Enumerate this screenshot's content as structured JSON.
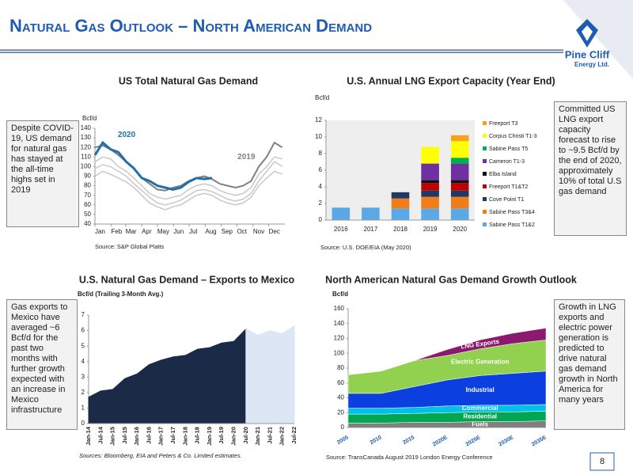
{
  "header": {
    "title": "Natural Gas Outlook – North American Demand",
    "logo": "Pine Cliff",
    "logo_sub": "Energy Ltd."
  },
  "page_number": "8",
  "notes": [
    "Despite COVID-19, US demand for natural gas has stayed at the all-time highs set in 2019",
    "Committed US LNG export capacity forecast to rise to ~9.5 Bcf/d by the end of 2020, approximately 10% of total U.S gas demand",
    "Gas exports to Mexico have averaged ~6 Bcf/d for the past two months with further growth expected with an increase in Mexico infrastructure",
    "Growth in LNG exports and electric power generation is predicted to drive natural gas demand growth in North America for many years"
  ],
  "chart_data": [
    {
      "type": "line",
      "title": "US Total Natural Gas Demand",
      "y_label": "Bcf/d",
      "source": "Source: S&P Global Platts",
      "x": [
        1,
        16,
        31,
        46,
        61,
        76,
        91,
        106,
        121,
        136,
        151,
        166,
        181,
        196,
        211,
        226,
        241,
        256,
        271,
        286,
        301,
        316,
        331,
        346,
        361
      ],
      "xlim": [
        1,
        366
      ],
      "xticks": [
        {
          "value": 1,
          "label": "Jan"
        },
        {
          "value": 32,
          "label": "Feb"
        },
        {
          "value": 60,
          "label": "Mar"
        },
        {
          "value": 91,
          "label": "Apr"
        },
        {
          "value": 121,
          "label": "May"
        },
        {
          "value": 152,
          "label": "Jun"
        },
        {
          "value": 182,
          "label": "Jul"
        },
        {
          "value": 213,
          "label": "Aug"
        },
        {
          "value": 244,
          "label": "Sep"
        },
        {
          "value": 274,
          "label": "Oct"
        },
        {
          "value": 305,
          "label": "Nov"
        },
        {
          "value": 335,
          "label": "Dec"
        }
      ],
      "ylim": [
        40,
        140
      ],
      "yticks": [
        40,
        50,
        60,
        70,
        80,
        90,
        100,
        110,
        120,
        130,
        140
      ],
      "grid": false,
      "series": [
        {
          "name": "2020",
          "color": "#1f6fa8",
          "values": [
            112,
            125,
            118,
            115,
            105,
            98,
            88,
            85,
            80,
            78,
            76,
            78,
            84,
            88,
            87,
            88,
            null,
            null,
            null,
            null,
            null,
            null,
            null,
            null,
            null
          ]
        },
        {
          "name": "2019",
          "color": "#808080",
          "values": [
            120,
            122,
            118,
            112,
            105,
            98,
            88,
            82,
            76,
            75,
            78,
            80,
            85,
            88,
            90,
            87,
            82,
            80,
            78,
            80,
            85,
            100,
            110,
            125,
            120
          ]
        },
        {
          "color": "#c8c8c8",
          "values": [
            105,
            110,
            108,
            100,
            95,
            88,
            80,
            72,
            68,
            66,
            68,
            70,
            76,
            80,
            82,
            80,
            75,
            72,
            70,
            72,
            78,
            92,
            100,
            110,
            108
          ]
        },
        {
          "color": "#c8c8c8",
          "values": [
            98,
            102,
            100,
            95,
            90,
            82,
            75,
            68,
            62,
            60,
            62,
            65,
            70,
            75,
            76,
            74,
            70,
            66,
            64,
            66,
            72,
            85,
            95,
            105,
            100
          ]
        },
        {
          "color": "#c8c8c8",
          "values": [
            90,
            95,
            92,
            88,
            84,
            78,
            70,
            62,
            58,
            55,
            58,
            60,
            65,
            70,
            72,
            70,
            65,
            62,
            60,
            62,
            68,
            80,
            88,
            95,
            92
          ]
        }
      ]
    },
    {
      "type": "bar",
      "stacked": true,
      "title": "U.S. Annual LNG Export Capacity (Year End)",
      "y_label": "Bcf/d",
      "source": "Source: U.S. DOE/EIA (May 2020)",
      "plot_background": "#eeeeee",
      "categories": [
        "2016",
        "2017",
        "2018",
        "2019",
        "2020"
      ],
      "ylim": [
        0,
        12
      ],
      "yticks": [
        0,
        2,
        4,
        6,
        8,
        10,
        12
      ],
      "grid": false,
      "series": [
        {
          "name": "Freeport T3",
          "color": "#f7a21b",
          "values": [
            0,
            0,
            0,
            0,
            0.7
          ]
        },
        {
          "name": "Corpus Christi T1-3",
          "color": "#ffff00",
          "values": [
            0,
            0,
            0,
            2.0,
            2.0
          ]
        },
        {
          "name": "Sabine Pass T5",
          "color": "#00b050",
          "values": [
            0,
            0,
            0,
            0,
            0.7
          ]
        },
        {
          "name": "Cameron T1-3",
          "color": "#7030a0",
          "values": [
            0,
            0,
            0,
            2.0,
            2.0
          ]
        },
        {
          "name": "Elba Island",
          "color": "#111111",
          "values": [
            0,
            0,
            0,
            0.35,
            0.35
          ]
        },
        {
          "name": "Freeport T1&T2",
          "color": "#c00000",
          "values": [
            0,
            0,
            0,
            0.9,
            0.9
          ]
        },
        {
          "name": "Cove Point T1",
          "color": "#1f3864",
          "values": [
            0,
            0,
            0.75,
            0.75,
            0.75
          ]
        },
        {
          "name": "Sabine Pass T3&4",
          "color": "#f07d17",
          "values": [
            0,
            0,
            1.2,
            1.4,
            1.4
          ]
        },
        {
          "name": "Sabine Pass T1&2",
          "color": "#5aa9e6",
          "values": [
            1.5,
            1.5,
            1.4,
            1.4,
            1.4
          ]
        }
      ]
    },
    {
      "type": "area",
      "stacked": false,
      "title": "U.S. Natural Gas Demand – Exports to Mexico",
      "y_label": "Bcf/d (Trailing 3-Month Avg.)",
      "source": "Sources: Bloomberg, EIA and Peters & Co. Limited estimates.",
      "categories": [
        "Jan-14",
        "Jul-14",
        "Jan-15",
        "Jul-15",
        "Jan-16",
        "Jul-16",
        "Jan-17",
        "Jul-17",
        "Jan-18",
        "Jul-18",
        "Jan-19",
        "Jul-19",
        "Jan-20",
        "Jul-20",
        "Jan-21",
        "Jul-21",
        "Jan-22",
        "Jul-22"
      ],
      "ylim": [
        0,
        7
      ],
      "yticks": [
        0,
        1,
        2,
        3,
        4,
        5,
        6,
        7
      ],
      "grid": false,
      "series": [
        {
          "color": "#1b2a47",
          "values": [
            1.7,
            2.1,
            2.2,
            2.9,
            3.2,
            3.8,
            4.1,
            4.3,
            4.4,
            4.8,
            4.9,
            5.2,
            5.3,
            6.1,
            null,
            null,
            null,
            null
          ]
        },
        {
          "color": "#dce6f4",
          "values": [
            null,
            null,
            null,
            null,
            null,
            null,
            null,
            null,
            null,
            null,
            null,
            null,
            null,
            6.1,
            5.7,
            6.0,
            5.8,
            6.3
          ]
        }
      ]
    },
    {
      "type": "area",
      "stacked": true,
      "title": "North American Natural Gas Demand Growth Outlook",
      "y_label": "Bcf/d",
      "source": "Source: TransCanada August 2019 London Energy Conference",
      "categories": [
        "2005",
        "2010",
        "2015",
        "2020E",
        "2025E",
        "2030E",
        "2035E"
      ],
      "ylim": [
        0,
        160
      ],
      "yticks": [
        0,
        20,
        40,
        60,
        80,
        100,
        120,
        140,
        160
      ],
      "grid": false,
      "series": [
        {
          "name": "Fuels",
          "color": "#7f7f7f",
          "values": [
            6,
            6,
            7,
            7,
            8,
            8,
            9
          ]
        },
        {
          "name": "Residential",
          "color": "#00a651",
          "values": [
            12,
            12,
            12,
            13,
            13,
            13,
            13
          ]
        },
        {
          "name": "Commercial",
          "color": "#00c0e8",
          "values": [
            8,
            8,
            8,
            9,
            9,
            9,
            9
          ]
        },
        {
          "name": "Industrial",
          "color": "#0b3fe0",
          "values": [
            20,
            20,
            28,
            35,
            40,
            43,
            45
          ]
        },
        {
          "name": "Electric Generation",
          "color": "#92d050",
          "values": [
            25,
            30,
            35,
            33,
            36,
            40,
            42
          ]
        },
        {
          "name": "LNG Exports",
          "color": "#8b1a6e",
          "values": [
            0,
            0,
            0,
            8,
            12,
            14,
            16
          ]
        }
      ]
    }
  ]
}
